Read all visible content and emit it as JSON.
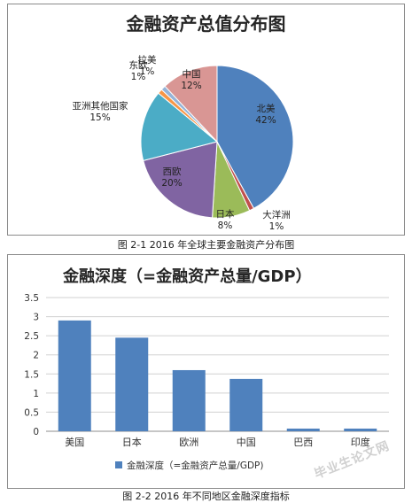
{
  "captions": {
    "fig1": "图 2-1   2016 年全球主要金融资产分布图",
    "fig2": "图  2-2   2016 年不同地区金融深度指标"
  },
  "watermark": "毕业生论文网",
  "chart_data": [
    {
      "type": "pie",
      "title": "金融资产总值分布图",
      "slices": [
        {
          "name": "北美",
          "value": 42,
          "label": "42%",
          "color": "#4f81bd"
        },
        {
          "name": "大洋洲",
          "value": 1,
          "label": "1%",
          "color": "#c0504d"
        },
        {
          "name": "日本",
          "value": 8,
          "label": "8%",
          "color": "#9bbb59"
        },
        {
          "name": "西欧",
          "value": 20,
          "label": "20%",
          "color": "#8064a2"
        },
        {
          "name": "亚洲其他国家",
          "value": 15,
          "label": "15%",
          "color": "#4bacc6"
        },
        {
          "name": "东欧",
          "value": 1,
          "label": "1%",
          "color": "#f79646"
        },
        {
          "name": "拉美",
          "value": 1,
          "label": "1%",
          "color": "#95b3d7"
        },
        {
          "name": "中国",
          "value": 12,
          "label": "12%",
          "color": "#d99694"
        }
      ]
    },
    {
      "type": "bar",
      "title": "金融深度（=金融资产总量/GDP）",
      "categories": [
        "美国",
        "日本",
        "欧洲",
        "中国",
        "巴西",
        "印度"
      ],
      "series": [
        {
          "name": "金融深度（=金融资产总量/GDP)",
          "values": [
            2.9,
            2.45,
            1.6,
            1.37,
            0.07,
            0.07
          ],
          "color": "#4f81bd"
        }
      ],
      "ylim": [
        0,
        3.5
      ],
      "yticks": [
        "0",
        "0.5",
        "1",
        "1.5",
        "2",
        "2.5",
        "3",
        "3.5"
      ],
      "grid": true,
      "legend": "bottom"
    }
  ]
}
